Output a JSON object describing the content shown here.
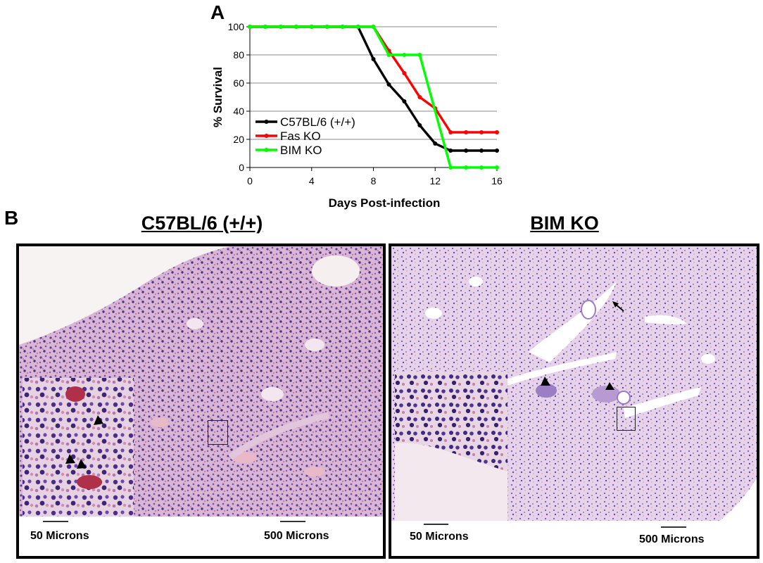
{
  "panel_a_label": "A",
  "panel_b_label": "B",
  "chart_data": {
    "type": "line",
    "xlabel": "Days Post-infection",
    "ylabel": "% Survival",
    "xlim": [
      0,
      16
    ],
    "ylim": [
      0,
      100
    ],
    "xticks": [
      "0",
      "4",
      "8",
      "12",
      "16"
    ],
    "yticks": [
      "0",
      "20",
      "40",
      "60",
      "80",
      "100"
    ],
    "grid": "horizontal",
    "legend_position": "bottom-left",
    "series": [
      {
        "name": "C57BL/6 (+/+)",
        "color": "#000000",
        "x": [
          0,
          1,
          2,
          3,
          4,
          5,
          6,
          7,
          8,
          9,
          10,
          11,
          12,
          13,
          14,
          15,
          16
        ],
        "y": [
          100,
          100,
          100,
          100,
          100,
          100,
          100,
          100,
          77,
          59,
          47,
          30,
          17,
          12,
          12,
          12,
          12
        ]
      },
      {
        "name": "Fas KO",
        "color": "#ff0000",
        "x": [
          0,
          1,
          2,
          3,
          4,
          5,
          6,
          7,
          8,
          9,
          10,
          11,
          12,
          13,
          14,
          15,
          16
        ],
        "y": [
          100,
          100,
          100,
          100,
          100,
          100,
          100,
          100,
          100,
          83,
          67,
          50,
          42,
          25,
          25,
          25,
          25
        ]
      },
      {
        "name": "BIM KO",
        "color": "#00ff00",
        "x": [
          0,
          1,
          2,
          3,
          4,
          5,
          6,
          7,
          8,
          9,
          10,
          11,
          13,
          14,
          15,
          16
        ],
        "y": [
          100,
          100,
          100,
          100,
          100,
          100,
          100,
          100,
          100,
          80,
          80,
          80,
          0,
          0,
          0,
          0
        ]
      }
    ]
  },
  "left_panel": {
    "title": "C57BL/6 (+/+)",
    "inset_scale": "50 Microns",
    "main_scale": "500 Microns"
  },
  "right_panel": {
    "title": "BIM KO",
    "inset_scale": "50 Microns",
    "main_scale": "500 Microns"
  }
}
